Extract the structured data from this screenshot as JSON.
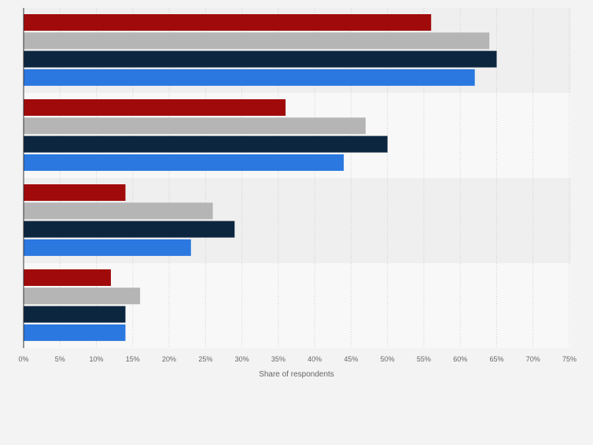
{
  "chart_data": {
    "type": "bar",
    "orientation": "horizontal",
    "categories": [
      "",
      "",
      "",
      ""
    ],
    "series": [
      {
        "color": "#a10a0a",
        "values": [
          56,
          36,
          14,
          12
        ]
      },
      {
        "color": "#b5b5b5",
        "values": [
          64,
          47,
          26,
          16
        ]
      },
      {
        "color": "#0d2640",
        "values": [
          65,
          50,
          29,
          14
        ]
      },
      {
        "color": "#2a78e0",
        "values": [
          62,
          44,
          23,
          14
        ]
      }
    ],
    "xlabel": "Share of respondents",
    "ylabel": "",
    "xlim": [
      0,
      75
    ],
    "x_ticks": [
      "0%",
      "5%",
      "10%",
      "15%",
      "20%",
      "25%",
      "30%",
      "35%",
      "40%",
      "45%",
      "50%",
      "55%",
      "60%",
      "65%",
      "70%",
      "75%"
    ],
    "grid": true,
    "legend": "none"
  }
}
